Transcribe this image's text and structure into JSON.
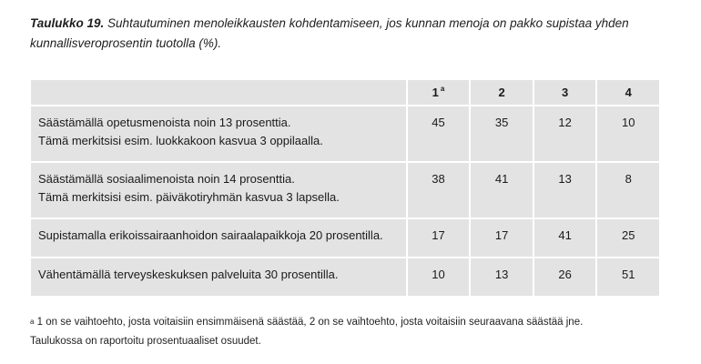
{
  "caption": {
    "label": "Taulukko 19.",
    "text_line1": "Suhtautuminen menoleikkausten kohdentamiseen, jos kunnan menoja on pakko supistaa yhden",
    "text_line2": "kunnallisveroprosentin tuotolla (%)."
  },
  "table": {
    "headers": [
      "",
      "1",
      "2",
      "3",
      "4"
    ],
    "header_footnote_mark": "a",
    "rows": [
      {
        "lines": [
          "Säästämällä opetusmenoista noin 13 prosenttia.",
          "Tämä merkitsisi esim. luokkakoon kasvua 3 oppilaalla."
        ],
        "values": [
          "45",
          "35",
          "12",
          "10"
        ]
      },
      {
        "lines": [
          "Säästämällä sosiaalimenoista noin 14 prosenttia.",
          "Tämä merkitsisi esim. päiväkotiryhmän kasvua 3 lapsella."
        ],
        "values": [
          "38",
          "41",
          "13",
          "8"
        ]
      },
      {
        "lines": [
          "Supistamalla erikoissairaanhoidon sairaalapaikkoja 20 prosentilla."
        ],
        "values": [
          "17",
          "17",
          "41",
          "25"
        ]
      },
      {
        "lines": [
          "Vähentämällä terveyskeskuksen palveluita 30 prosentilla."
        ],
        "values": [
          "10",
          "13",
          "26",
          "51"
        ]
      }
    ]
  },
  "footnote": {
    "mark": "a",
    "line1": " 1 on se vaihtoehto, josta voitaisiin ensimmäisenä säästää, 2 on se vaihtoehto, josta voitaisiin seuraavana säästää jne.",
    "line2": "Taulukossa on raportoitu prosentuaaliset osuudet."
  }
}
